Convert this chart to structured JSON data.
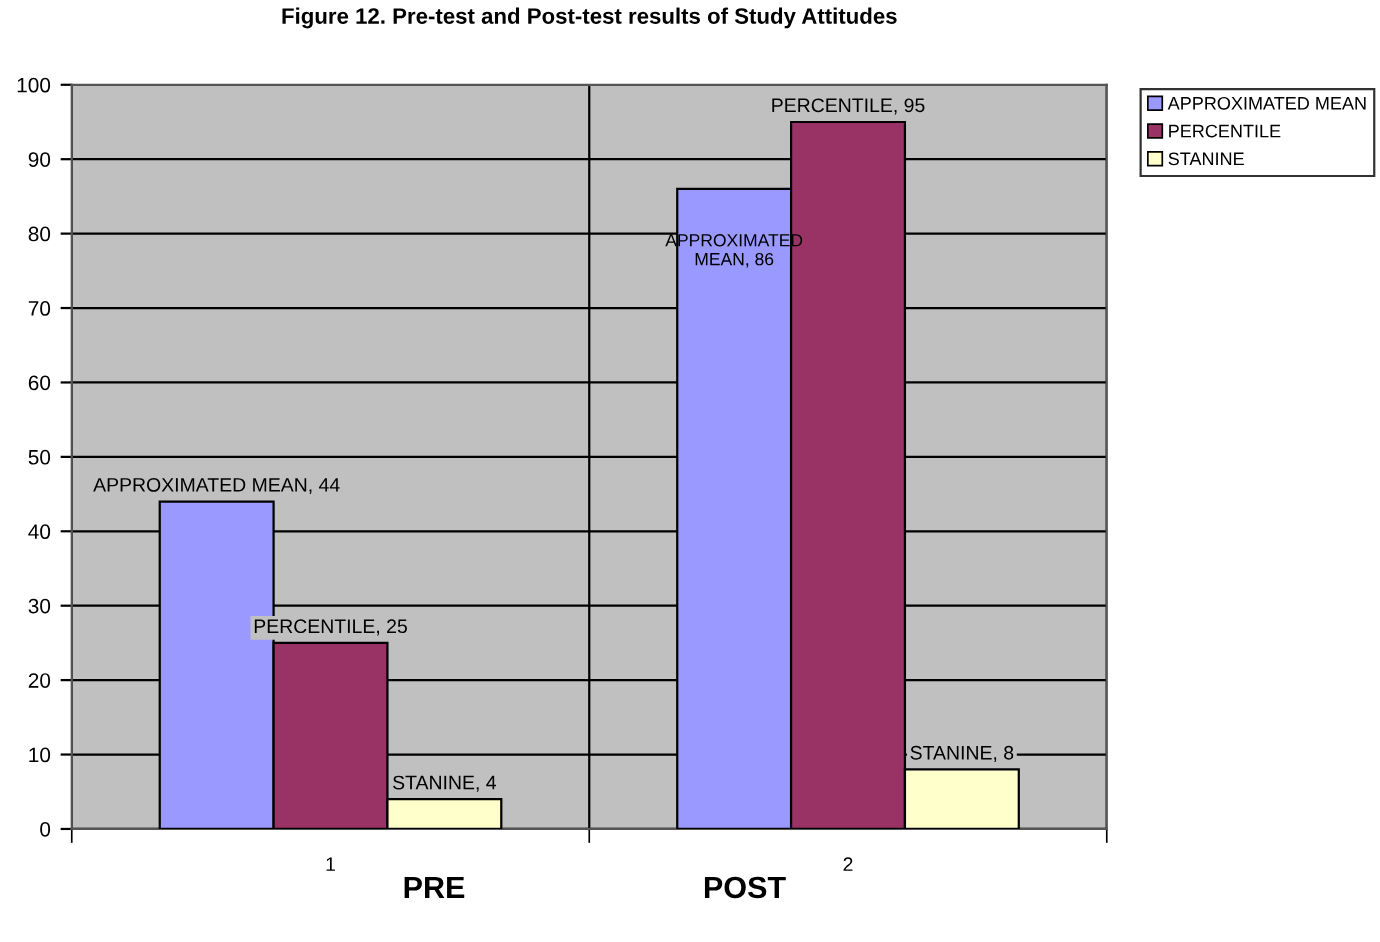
{
  "chart_data": {
    "type": "bar",
    "title": "Figure 12. Pre-test and Post-test results of Study Attitudes",
    "categories": [
      "1",
      "2"
    ],
    "series": [
      {
        "name": "APPROXIMATED MEAN",
        "color": "#9999ff",
        "values": [
          44,
          86
        ],
        "value_labels": [
          "APPROXIMATED MEAN, 44",
          "APPROXIMATED\nMEAN, 86"
        ]
      },
      {
        "name": "PERCENTILE",
        "color": "#993366",
        "values": [
          25,
          95
        ],
        "value_labels": [
          "PERCENTILE, 25",
          "PERCENTILE, 95"
        ]
      },
      {
        "name": "STANINE",
        "color": "#ffffcc",
        "values": [
          4,
          8
        ],
        "value_labels": [
          "STANINE, 4",
          "STANINE, 8"
        ]
      }
    ],
    "annotations": [
      "PRE",
      "POST"
    ],
    "ylim": [
      0,
      100
    ],
    "yticks": [
      0,
      10,
      20,
      30,
      40,
      50,
      60,
      70,
      80,
      90,
      100
    ],
    "grid": true,
    "legend": "top right"
  }
}
